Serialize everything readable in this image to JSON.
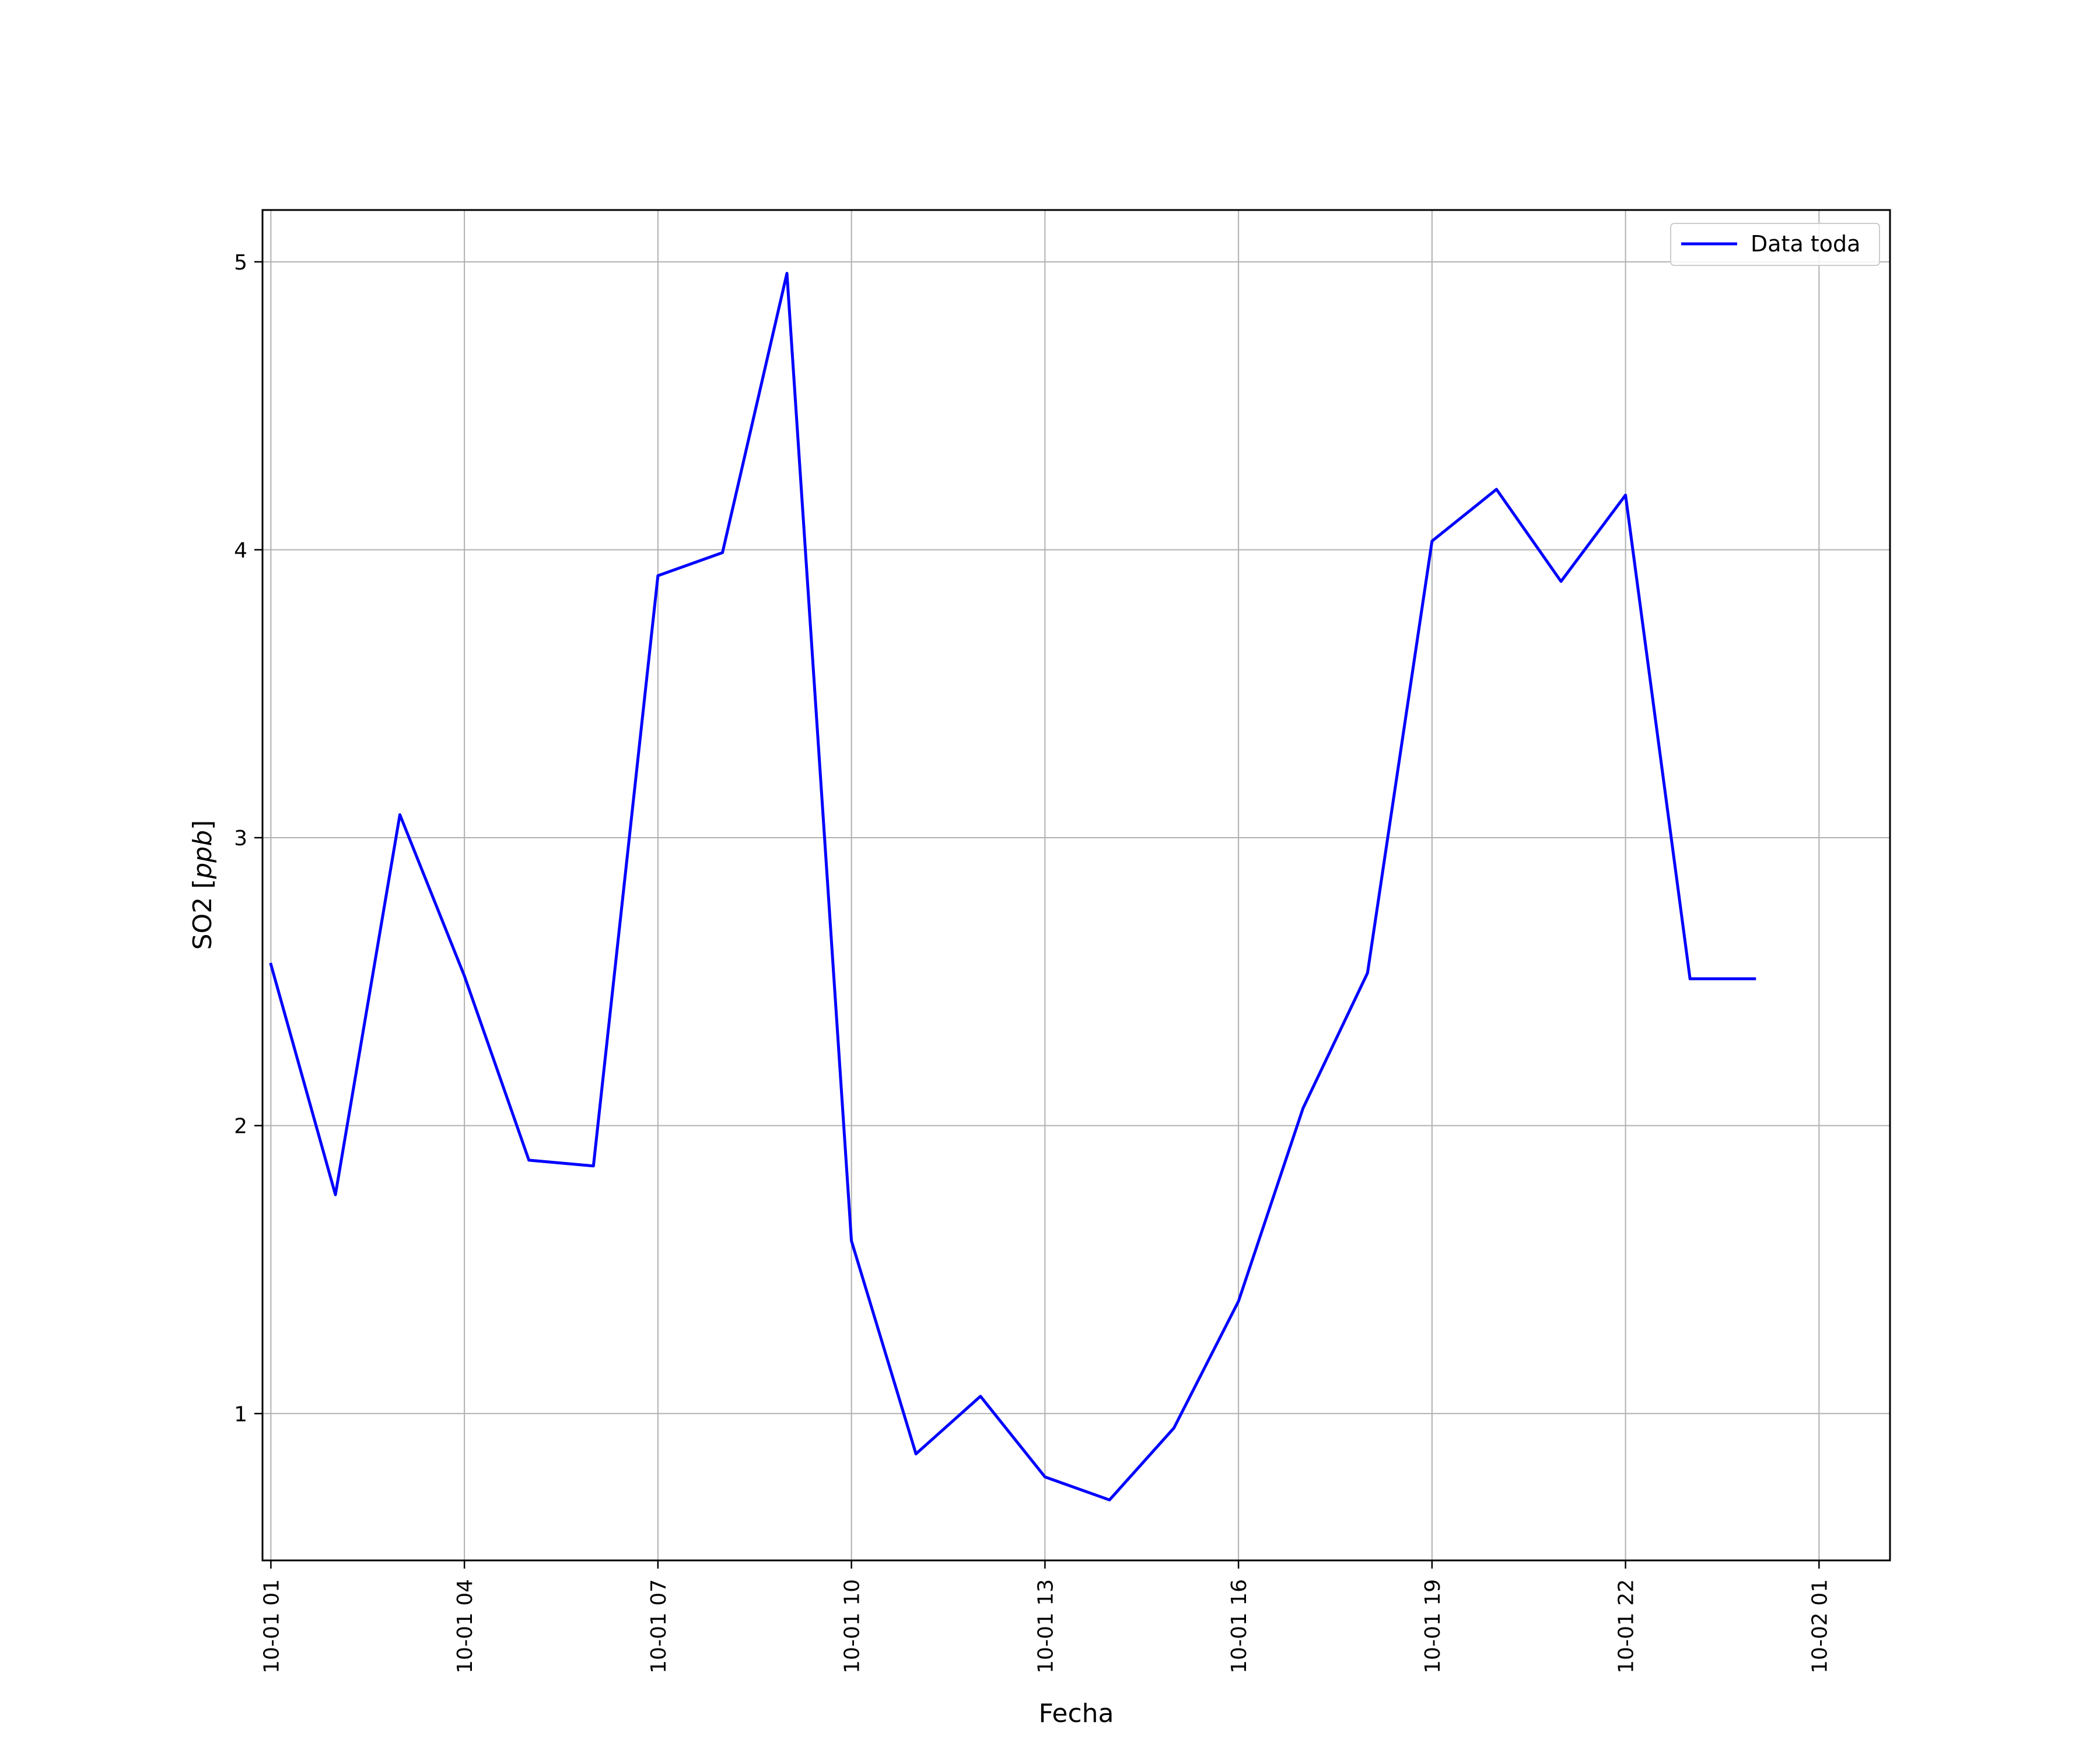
{
  "chart_data": {
    "type": "line",
    "title": "",
    "xlabel": "Fecha",
    "ylabel": "SO2 [ppb]",
    "ylabel_prefix": "SO2 [",
    "ylabel_unit": "ppb",
    "ylabel_suffix": "]",
    "x_ticks": [
      "10-01 01",
      "10-01 04",
      "10-01 07",
      "10-01 10",
      "10-01 13",
      "10-01 16",
      "10-01 19",
      "10-01 22",
      "10-02 01"
    ],
    "y_ticks": [
      "1",
      "2",
      "3",
      "4",
      "5"
    ],
    "ylim": [
      0.49,
      5.18
    ],
    "xlim_hours": [
      -0.13,
      25.1
    ],
    "grid": true,
    "legend_position": "top-right",
    "series": [
      {
        "name": "Data toda",
        "color": "#0000ff",
        "x": [
          "10-01 01:00",
          "10-01 02:00",
          "10-01 03:00",
          "10-01 04:00",
          "10-01 05:00",
          "10-01 06:00",
          "10-01 07:00",
          "10-01 08:00",
          "10-01 09:00",
          "10-01 10:00",
          "10-01 11:00",
          "10-01 12:00",
          "10-01 13:00",
          "10-01 14:00",
          "10-01 15:00",
          "10-01 16:00",
          "10-01 17:00",
          "10-01 18:00",
          "10-01 19:00",
          "10-01 20:00",
          "10-01 21:00",
          "10-01 22:00",
          "10-01 23:00",
          "10-02 00:00"
        ],
        "values": [
          2.56,
          1.76,
          3.08,
          2.52,
          1.88,
          1.86,
          3.91,
          3.99,
          4.96,
          1.6,
          0.86,
          1.06,
          0.78,
          0.7,
          0.95,
          1.39,
          2.06,
          2.53,
          4.03,
          4.21,
          3.89,
          4.19,
          2.51,
          2.51
        ]
      }
    ]
  }
}
